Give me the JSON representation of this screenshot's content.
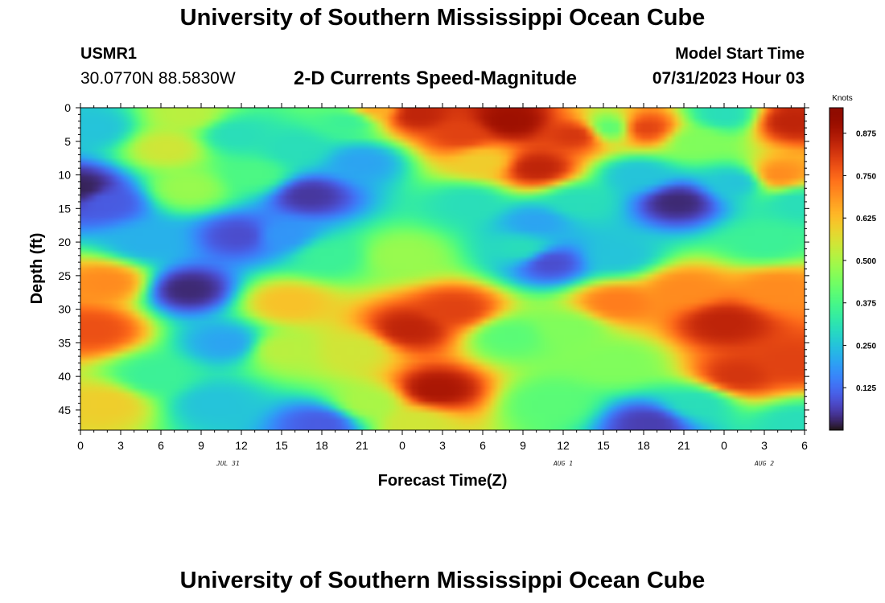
{
  "header": {
    "title": "University of Southern Mississippi Ocean Cube",
    "station_id": "USMR1",
    "station_coords": "30.0770N  88.5830W",
    "model_label": "Model Start Time",
    "model_time": "07/31/2023 Hour 03"
  },
  "footer": {
    "title": "University of Southern Mississippi Ocean Cube"
  },
  "chart_data": {
    "type": "heatmap",
    "title": "2-D Currents Speed-Magnitude",
    "xlabel": "Forecast Time(Z)",
    "ylabel": "Depth (ft)",
    "x_ticks": [
      "0",
      "3",
      "6",
      "9",
      "12",
      "15",
      "18",
      "21",
      "0",
      "3",
      "6",
      "9",
      "12",
      "15",
      "18",
      "21",
      "0",
      "3",
      "6"
    ],
    "x_hours_range": [
      0,
      54
    ],
    "date_labels": [
      {
        "text": "JUL 31",
        "hour": 11
      },
      {
        "text": "AUG 1",
        "hour": 36
      },
      {
        "text": "AUG 2",
        "hour": 51
      }
    ],
    "y_ticks": [
      "0",
      "5",
      "10",
      "15",
      "20",
      "25",
      "30",
      "35",
      "40",
      "45"
    ],
    "ylim": [
      0,
      48
    ],
    "y_inverted": true,
    "colorbar": {
      "unit": "Knots",
      "range": [
        0.0,
        0.95
      ],
      "ticks": [
        "0.125",
        "0.250",
        "0.375",
        "0.500",
        "0.625",
        "0.750",
        "0.875"
      ]
    },
    "field_blobs": [
      {
        "hour": 0,
        "depth": 12,
        "speed": 0.02
      },
      {
        "hour": 1,
        "depth": 3,
        "speed": 0.25
      },
      {
        "hour": 2,
        "depth": 14,
        "speed": 0.1
      },
      {
        "hour": 6.5,
        "depth": 6,
        "speed": 0.55
      },
      {
        "hour": 8,
        "depth": 1,
        "speed": 0.52
      },
      {
        "hour": 8,
        "depth": 12,
        "speed": 0.48
      },
      {
        "hour": 11.5,
        "depth": 4,
        "speed": 0.3
      },
      {
        "hour": 13,
        "depth": 10,
        "speed": 0.38
      },
      {
        "hour": 12,
        "depth": 19,
        "speed": 0.08
      },
      {
        "hour": 8,
        "depth": 27,
        "speed": 0.03
      },
      {
        "hour": 15,
        "depth": 19,
        "speed": 0.18
      },
      {
        "hour": 5,
        "depth": 20,
        "speed": 0.22
      },
      {
        "hour": 1,
        "depth": 33,
        "speed": 0.78
      },
      {
        "hour": 2,
        "depth": 26,
        "speed": 0.7
      },
      {
        "hour": 2,
        "depth": 44,
        "speed": 0.6
      },
      {
        "hour": 5.5,
        "depth": 40,
        "speed": 0.35
      },
      {
        "hour": 10,
        "depth": 44,
        "speed": 0.25
      },
      {
        "hour": 11,
        "depth": 35,
        "speed": 0.2
      },
      {
        "hour": 15.5,
        "depth": 29,
        "speed": 0.62
      },
      {
        "hour": 15,
        "depth": 36,
        "speed": 0.52
      },
      {
        "hour": 18,
        "depth": 47,
        "speed": 0.1
      },
      {
        "hour": 17,
        "depth": 13,
        "speed": 0.05
      },
      {
        "hour": 16,
        "depth": 6,
        "speed": 0.3
      },
      {
        "hour": 21,
        "depth": 8,
        "speed": 0.2
      },
      {
        "hour": 20,
        "depth": 2,
        "speed": 0.35
      },
      {
        "hour": 22,
        "depth": 0,
        "speed": 0.65
      },
      {
        "hour": 18.5,
        "depth": 22,
        "speed": 0.35
      },
      {
        "hour": 20.5,
        "depth": 36,
        "speed": 0.55
      },
      {
        "hour": 21.5,
        "depth": 44,
        "speed": 0.5
      },
      {
        "hour": 24,
        "depth": 22,
        "speed": 0.48
      },
      {
        "hour": 24.5,
        "depth": 33,
        "speed": 0.85
      },
      {
        "hour": 26.5,
        "depth": 42,
        "speed": 0.88
      },
      {
        "hour": 28,
        "depth": 30,
        "speed": 0.8
      },
      {
        "hour": 25,
        "depth": 47,
        "speed": 0.55
      },
      {
        "hour": 25,
        "depth": 1,
        "speed": 0.85
      },
      {
        "hour": 28.5,
        "depth": 4,
        "speed": 0.8
      },
      {
        "hour": 30,
        "depth": 8,
        "speed": 0.6
      },
      {
        "hour": 29,
        "depth": 14,
        "speed": 0.3
      },
      {
        "hour": 32,
        "depth": 2,
        "speed": 0.9
      },
      {
        "hour": 34,
        "depth": 9,
        "speed": 0.85
      },
      {
        "hour": 34,
        "depth": 17,
        "speed": 0.2
      },
      {
        "hour": 37,
        "depth": 4,
        "speed": 0.82
      },
      {
        "hour": 37,
        "depth": 14,
        "speed": 0.3
      },
      {
        "hour": 35,
        "depth": 23,
        "speed": 0.08
      },
      {
        "hour": 33,
        "depth": 21,
        "speed": 0.3
      },
      {
        "hour": 40,
        "depth": 22,
        "speed": 0.25
      },
      {
        "hour": 32,
        "depth": 34,
        "speed": 0.4
      },
      {
        "hour": 36.5,
        "depth": 33,
        "speed": 0.45
      },
      {
        "hour": 40,
        "depth": 29,
        "speed": 0.72
      },
      {
        "hour": 40,
        "depth": 38,
        "speed": 0.45
      },
      {
        "hour": 35,
        "depth": 44,
        "speed": 0.4
      },
      {
        "hour": 39.5,
        "depth": 3,
        "speed": 0.4
      },
      {
        "hour": 42,
        "depth": 3,
        "speed": 0.8
      },
      {
        "hour": 41.5,
        "depth": 10,
        "speed": 0.25
      },
      {
        "hour": 44.5,
        "depth": 14,
        "speed": 0.03
      },
      {
        "hour": 46,
        "depth": 5,
        "speed": 0.45
      },
      {
        "hour": 45,
        "depth": 27,
        "speed": 0.7
      },
      {
        "hour": 48,
        "depth": 32,
        "speed": 0.85
      },
      {
        "hour": 49,
        "depth": 40,
        "speed": 0.82
      },
      {
        "hour": 42.5,
        "depth": 47,
        "speed": 0.06
      },
      {
        "hour": 46,
        "depth": 44,
        "speed": 0.3
      },
      {
        "hour": 53,
        "depth": 38,
        "speed": 0.8
      },
      {
        "hour": 52,
        "depth": 27,
        "speed": 0.7
      },
      {
        "hour": 51,
        "depth": 20,
        "speed": 0.35
      },
      {
        "hour": 53,
        "depth": 2,
        "speed": 0.85
      },
      {
        "hour": 52,
        "depth": 10,
        "speed": 0.7
      },
      {
        "hour": 49,
        "depth": 11,
        "speed": 0.25
      },
      {
        "hour": 48,
        "depth": 1,
        "speed": 0.3
      },
      {
        "hour": 53.5,
        "depth": 47,
        "speed": 0.3
      },
      {
        "hour": 53.5,
        "depth": 14,
        "speed": 0.3
      }
    ]
  }
}
